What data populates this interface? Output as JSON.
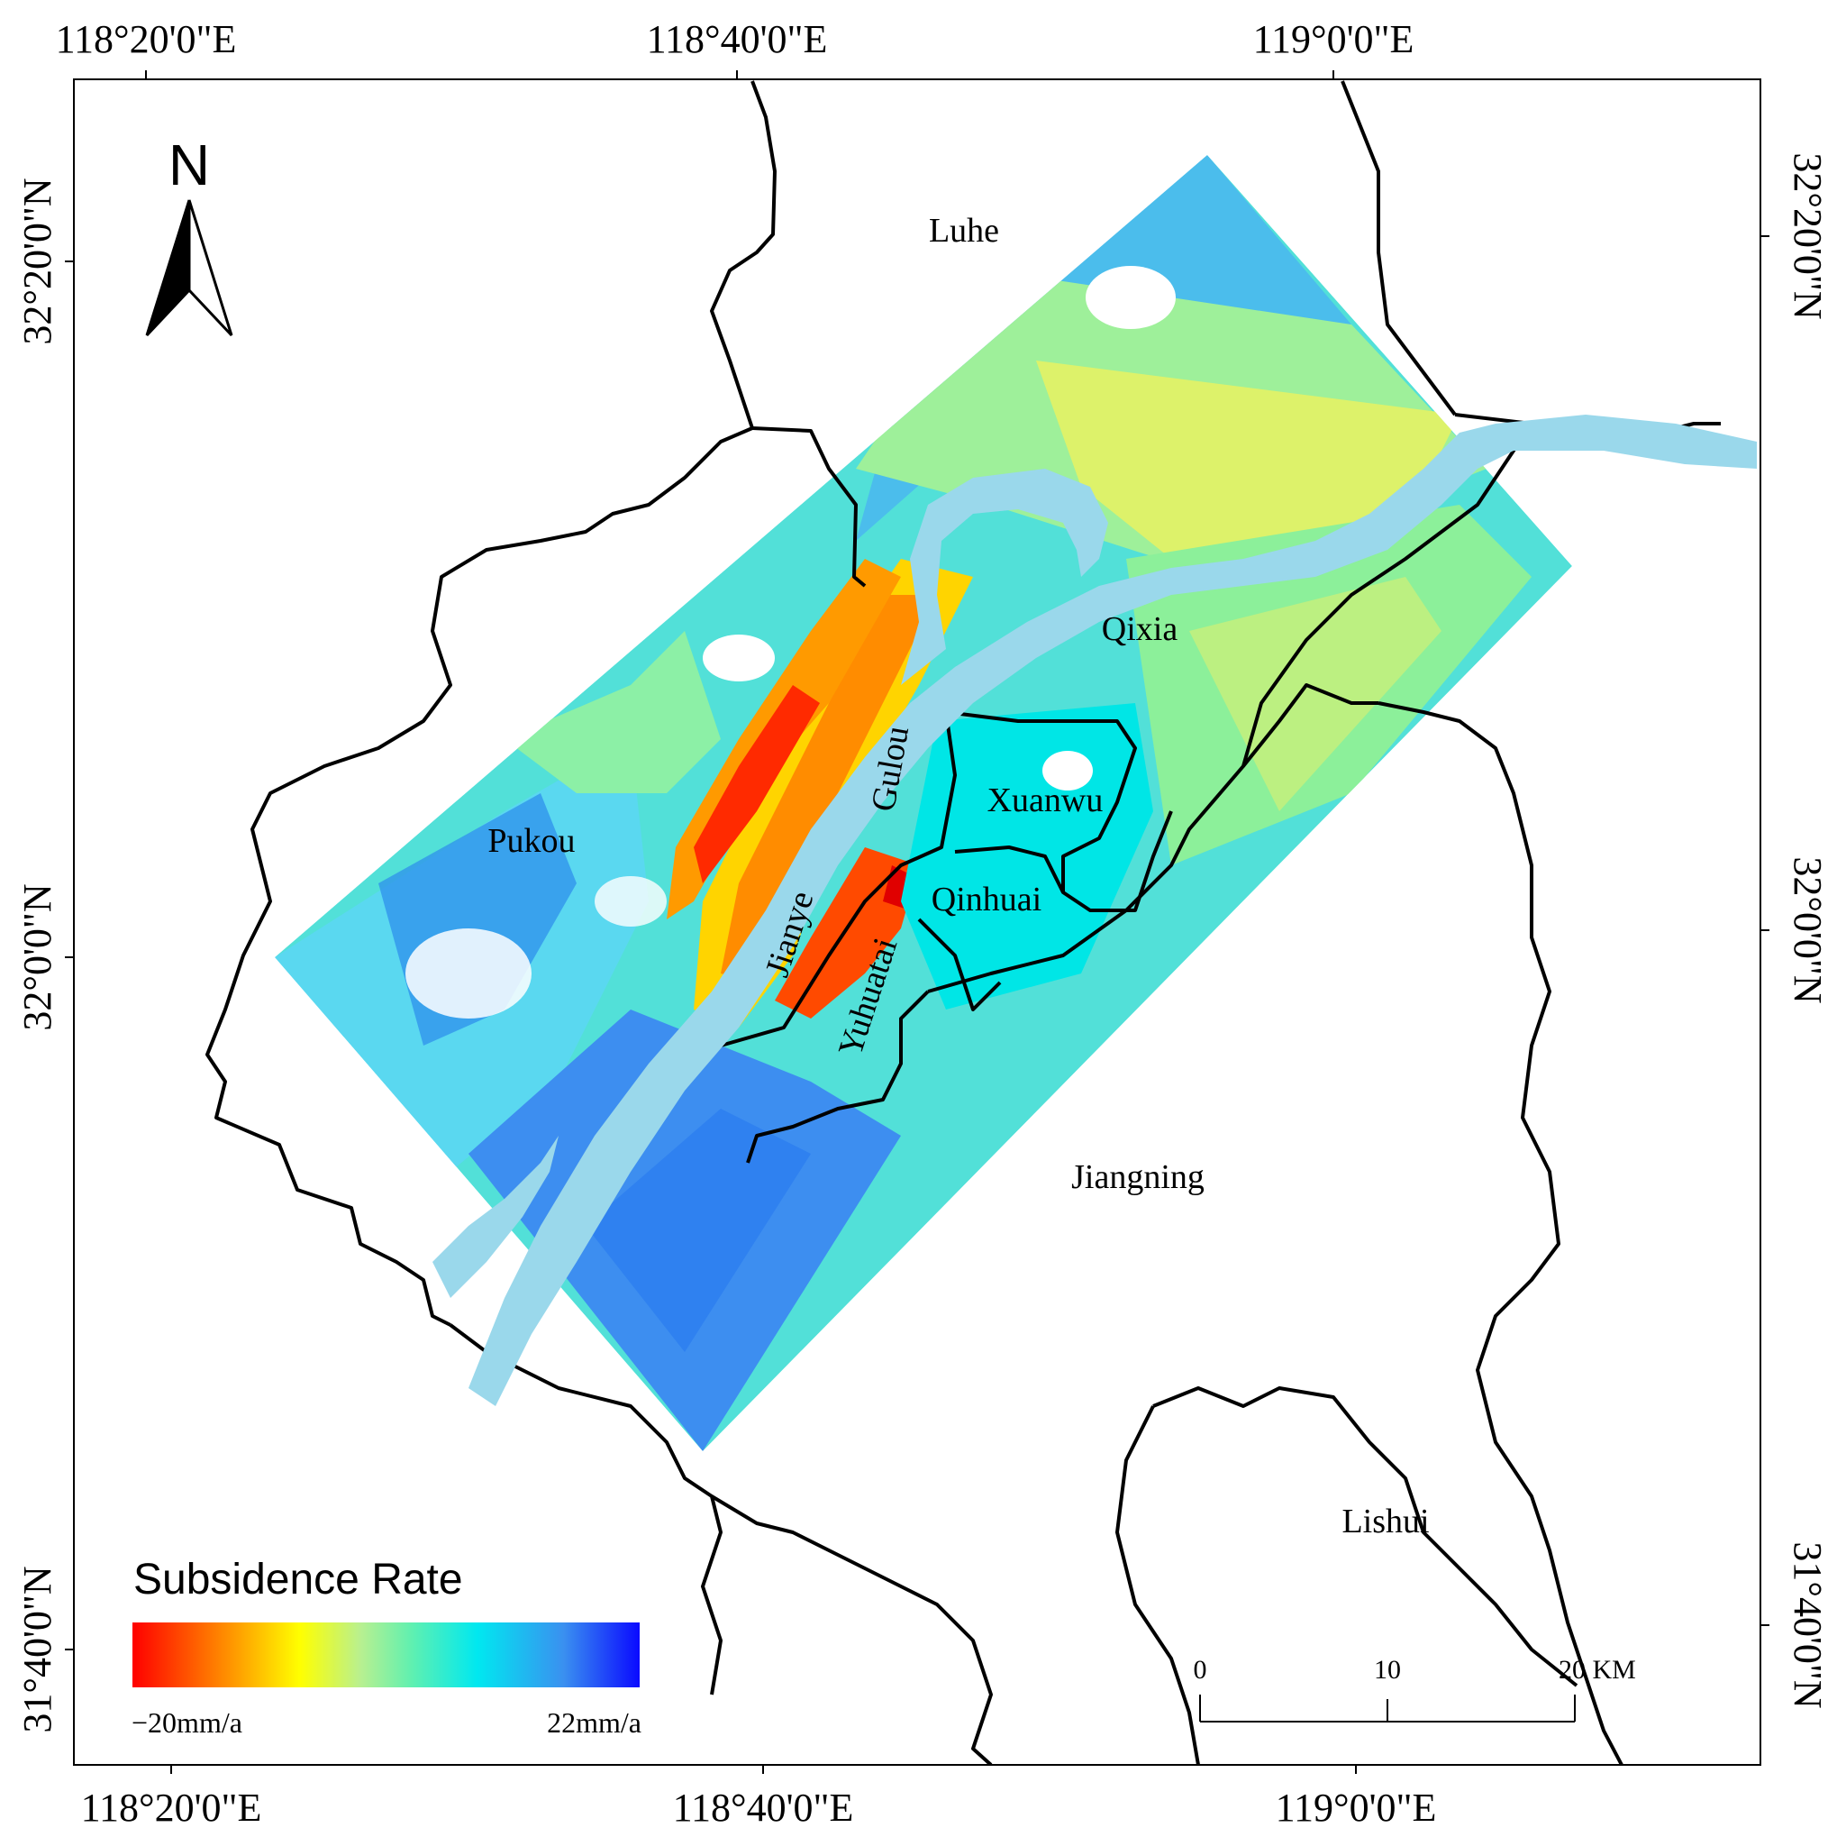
{
  "map": {
    "type": "subsidence-rate map",
    "top_axis_labels": [
      "118°20'0\"E",
      "118°40'0\"E",
      "119°0'0\"E"
    ],
    "bottom_axis_labels": [
      "118°20'0\"E",
      "118°40'0\"E",
      "119°0'0\"E"
    ],
    "left_axis_labels": [
      "32°20'0\"N",
      "32°0'0\"N",
      "31°40'0\"N"
    ],
    "right_axis_labels": [
      "32°20'0\"N",
      "32°0'0\"N",
      "31°40'0\"N"
    ],
    "districts": {
      "luhe": "Luhe",
      "qixia": "Qixia",
      "gulou": "Gulou",
      "xuanwu": "Xuanwu",
      "pukou": "Pukou",
      "qinhuai": "Qinhuai",
      "jianye": "Jianye",
      "yuhuatai": "Yuhuatai",
      "jiangning": "Jiangning",
      "lishui": "Lishui"
    },
    "north_arrow": {
      "label": "N",
      "icon": "north-arrow-icon"
    },
    "legend": {
      "title": "Subsidence Rate",
      "min_label": "−20mm/a",
      "max_label": "22mm/a",
      "min_value": -20,
      "max_value": 22,
      "colors": [
        "#ff0000",
        "#ff7a00",
        "#ffd000",
        "#ffff00",
        "#d8f055",
        "#a6f0a0",
        "#7cf0a0",
        "#00e8e8",
        "#2fc7f0",
        "#3f8ff0",
        "#2850f0",
        "#0a0aff"
      ]
    },
    "scale_bar": {
      "labels": [
        "0",
        "10",
        "20 KM"
      ]
    },
    "colors": {
      "river": "#9ad8eb",
      "boundary": "#000000",
      "frame": "#000000"
    }
  }
}
